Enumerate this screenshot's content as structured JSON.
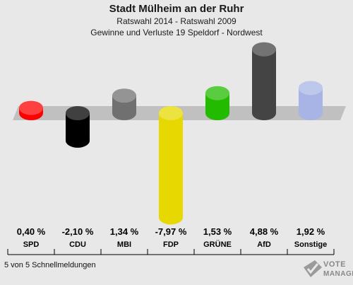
{
  "header": {
    "title": "Stadt Mülheim an der Ruhr",
    "subtitle": "Ratswahl 2014 - Ratswahl 2009",
    "subtitle2": "Gewinne und Verluste 19 Speldorf - Nordwest"
  },
  "footer": {
    "text": "5 von 5 Schnellmeldungen"
  },
  "logo": {
    "line1": "VOTE",
    "line2": "MANAGER"
  },
  "chart_data": {
    "type": "bar",
    "title": "Stadt Mülheim an der Ruhr",
    "categories": [
      "SPD",
      "CDU",
      "MBI",
      "FDP",
      "GRÜNE",
      "AfD",
      "Sonstige"
    ],
    "values": [
      0.4,
      -2.1,
      1.34,
      -7.97,
      1.53,
      4.88,
      1.92
    ],
    "value_labels": [
      "0,40 %",
      "-2,10 %",
      "1,34 %",
      "-7,97 %",
      "1,53 %",
      "4,88 %",
      "1,92 %"
    ],
    "colors": [
      "#ff0000",
      "#000000",
      "#707070",
      "#e6d800",
      "#22bb00",
      "#444444",
      "#a8b4e6"
    ],
    "baseline": 0,
    "grid": false,
    "legend": "none"
  }
}
